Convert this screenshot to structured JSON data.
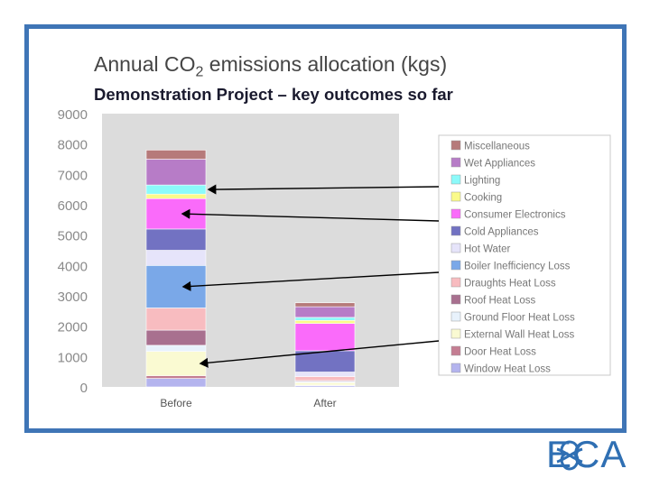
{
  "slide": {
    "title_main": "Annual CO",
    "title_sub": "2",
    "title_rest": " emissions allocation (kgs)",
    "subtitle": "Demonstration Project – key outcomes so far",
    "logo_text": "ECA",
    "frame_color": "#3f75b6"
  },
  "chart_data": {
    "type": "bar",
    "stacked": true,
    "categories": [
      "Before",
      "After"
    ],
    "ylim": [
      0,
      9000
    ],
    "yticks": [
      "0",
      "1000",
      "2000",
      "3000",
      "4000",
      "5000",
      "6000",
      "7000",
      "8000",
      "9000"
    ],
    "legend_position": "right",
    "series": [
      {
        "name": "Window Heat Loss",
        "color": "#b4b4ee",
        "values": [
          280,
          40
        ]
      },
      {
        "name": "Door Heat Loss",
        "color": "#c47d92",
        "values": [
          90,
          20
        ]
      },
      {
        "name": "External Wall Heat Loss",
        "color": "#fafad2",
        "values": [
          800,
          80
        ]
      },
      {
        "name": "Ground Floor Heat Loss",
        "color": "#e8f2fc",
        "values": [
          200,
          40
        ]
      },
      {
        "name": "Roof Heat Loss",
        "color": "#a8708f",
        "values": [
          500,
          30
        ]
      },
      {
        "name": "Draughts Heat Loss",
        "color": "#f8bcc0",
        "values": [
          730,
          130
        ]
      },
      {
        "name": "Boiler Inefficiency Loss",
        "color": "#7aa8e8",
        "values": [
          1400,
          0
        ]
      },
      {
        "name": "Hot Water",
        "color": "#e6e4fa",
        "values": [
          500,
          150
        ]
      },
      {
        "name": "Cold Appliances",
        "color": "#7272c2",
        "values": [
          700,
          700
        ]
      },
      {
        "name": "Consumer Electronics",
        "color": "#fa6bfa",
        "values": [
          1000,
          900
        ]
      },
      {
        "name": "Cooking",
        "color": "#fafa8a",
        "values": [
          150,
          100
        ]
      },
      {
        "name": "Lighting",
        "color": "#8cfafa",
        "values": [
          300,
          100
        ]
      },
      {
        "name": "Wet Appliances",
        "color": "#b77cc7",
        "values": [
          850,
          350
        ]
      },
      {
        "name": "Miscellaneous",
        "color": "#b67a7a",
        "values": [
          300,
          130
        ]
      }
    ],
    "arrows_point_to": [
      "Lighting",
      "Consumer Electronics",
      "Boiler Inefficiency Loss",
      "External Wall Heat Loss"
    ]
  }
}
